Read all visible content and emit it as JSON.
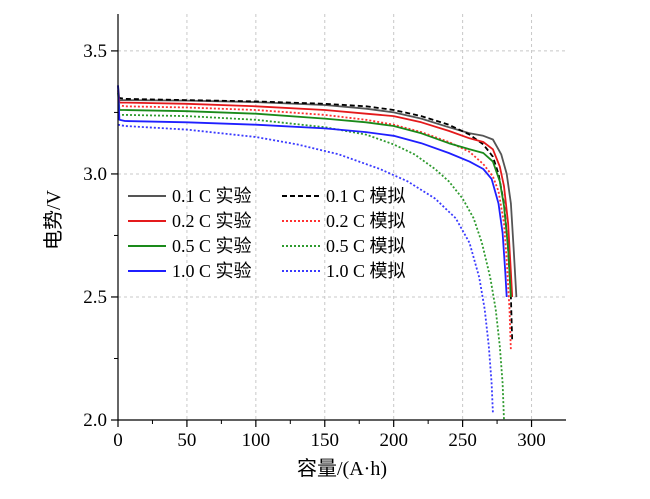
{
  "chart_data": {
    "type": "line",
    "xlabel": "容量/(A·h)",
    "ylabel": "电势/V",
    "xlim": [
      0,
      325
    ],
    "ylim": [
      2.0,
      3.65
    ],
    "xticks": [
      0,
      50,
      100,
      150,
      200,
      250,
      300
    ],
    "xtick_labels": [
      "0",
      "50",
      "100",
      "150",
      "200",
      "250",
      "300"
    ],
    "yticks": [
      2.0,
      2.5,
      3.0,
      3.5
    ],
    "ytick_labels": [
      "2.0",
      "2.5",
      "3.0",
      "3.5"
    ],
    "grid": true,
    "legend_position": "middle-left",
    "series": [
      {
        "name": "0.1 C 实验",
        "color": "#555555",
        "dash": "solid",
        "x": [
          0,
          1,
          5,
          50,
          100,
          150,
          180,
          200,
          220,
          240,
          255,
          265,
          272,
          278,
          282,
          285,
          287,
          289
        ],
        "y": [
          3.36,
          3.3,
          3.3,
          3.298,
          3.292,
          3.28,
          3.265,
          3.25,
          3.225,
          3.19,
          3.165,
          3.155,
          3.14,
          3.08,
          3.0,
          2.88,
          2.7,
          2.5
        ]
      },
      {
        "name": "0.1 C 模拟",
        "color": "#000000",
        "dash": "5,3",
        "x": [
          0,
          5,
          50,
          100,
          150,
          180,
          200,
          220,
          240,
          255,
          265,
          272,
          276,
          280,
          283,
          285,
          286
        ],
        "y": [
          3.31,
          3.305,
          3.3,
          3.295,
          3.285,
          3.275,
          3.26,
          3.235,
          3.2,
          3.16,
          3.12,
          3.07,
          3.0,
          2.88,
          2.7,
          2.5,
          2.32
        ]
      },
      {
        "name": "0.2 C 实验",
        "color": "#e41a1c",
        "dash": "solid",
        "x": [
          0,
          1,
          5,
          50,
          100,
          150,
          180,
          200,
          220,
          240,
          255,
          265,
          272,
          277,
          280,
          283,
          285,
          286
        ],
        "y": [
          3.34,
          3.29,
          3.29,
          3.285,
          3.275,
          3.26,
          3.245,
          3.235,
          3.21,
          3.175,
          3.145,
          3.13,
          3.1,
          3.03,
          2.95,
          2.8,
          2.6,
          2.5
        ]
      },
      {
        "name": "0.2 C 模拟",
        "color": "#ff3030",
        "dash": "2,2",
        "x": [
          0,
          5,
          50,
          100,
          150,
          180,
          200,
          220,
          240,
          255,
          265,
          272,
          276,
          280,
          282,
          284,
          285
        ],
        "y": [
          3.28,
          3.275,
          3.27,
          3.26,
          3.24,
          3.22,
          3.2,
          3.17,
          3.13,
          3.09,
          3.04,
          2.99,
          2.93,
          2.8,
          2.65,
          2.45,
          2.28
        ]
      },
      {
        "name": "0.5 C 实验",
        "color": "#1a8a1a",
        "dash": "solid",
        "x": [
          0,
          1,
          5,
          50,
          100,
          150,
          180,
          200,
          220,
          240,
          255,
          265,
          272,
          277,
          280,
          283,
          285
        ],
        "y": [
          3.33,
          3.26,
          3.26,
          3.255,
          3.245,
          3.225,
          3.21,
          3.195,
          3.165,
          3.125,
          3.1,
          3.085,
          3.05,
          2.97,
          2.87,
          2.7,
          2.5
        ]
      },
      {
        "name": "0.5 C 模拟",
        "color": "#2e9a2e",
        "dash": "2,2",
        "x": [
          0,
          5,
          50,
          100,
          150,
          180,
          200,
          215,
          230,
          240,
          250,
          258,
          264,
          270,
          274,
          277,
          279,
          280
        ],
        "y": [
          3.24,
          3.24,
          3.235,
          3.22,
          3.19,
          3.16,
          3.12,
          3.08,
          3.02,
          2.97,
          2.9,
          2.82,
          2.72,
          2.58,
          2.45,
          2.3,
          2.15,
          2.0
        ]
      },
      {
        "name": "1.0 C 实验",
        "color": "#1f1fff",
        "dash": "solid",
        "x": [
          0,
          1,
          5,
          50,
          100,
          150,
          180,
          200,
          220,
          240,
          255,
          265,
          271,
          276,
          279,
          281,
          282
        ],
        "y": [
          3.36,
          3.22,
          3.215,
          3.21,
          3.2,
          3.185,
          3.17,
          3.155,
          3.125,
          3.085,
          3.05,
          3.02,
          2.98,
          2.88,
          2.76,
          2.6,
          2.5
        ]
      },
      {
        "name": "1.0 C 模拟",
        "color": "#3a3aff",
        "dash": "2,2",
        "x": [
          0,
          5,
          50,
          100,
          130,
          160,
          190,
          210,
          230,
          245,
          255,
          262,
          266,
          269,
          271,
          272
        ],
        "y": [
          3.2,
          3.195,
          3.18,
          3.15,
          3.12,
          3.08,
          3.02,
          2.97,
          2.9,
          2.82,
          2.72,
          2.58,
          2.45,
          2.3,
          2.15,
          2.03
        ]
      }
    ]
  }
}
